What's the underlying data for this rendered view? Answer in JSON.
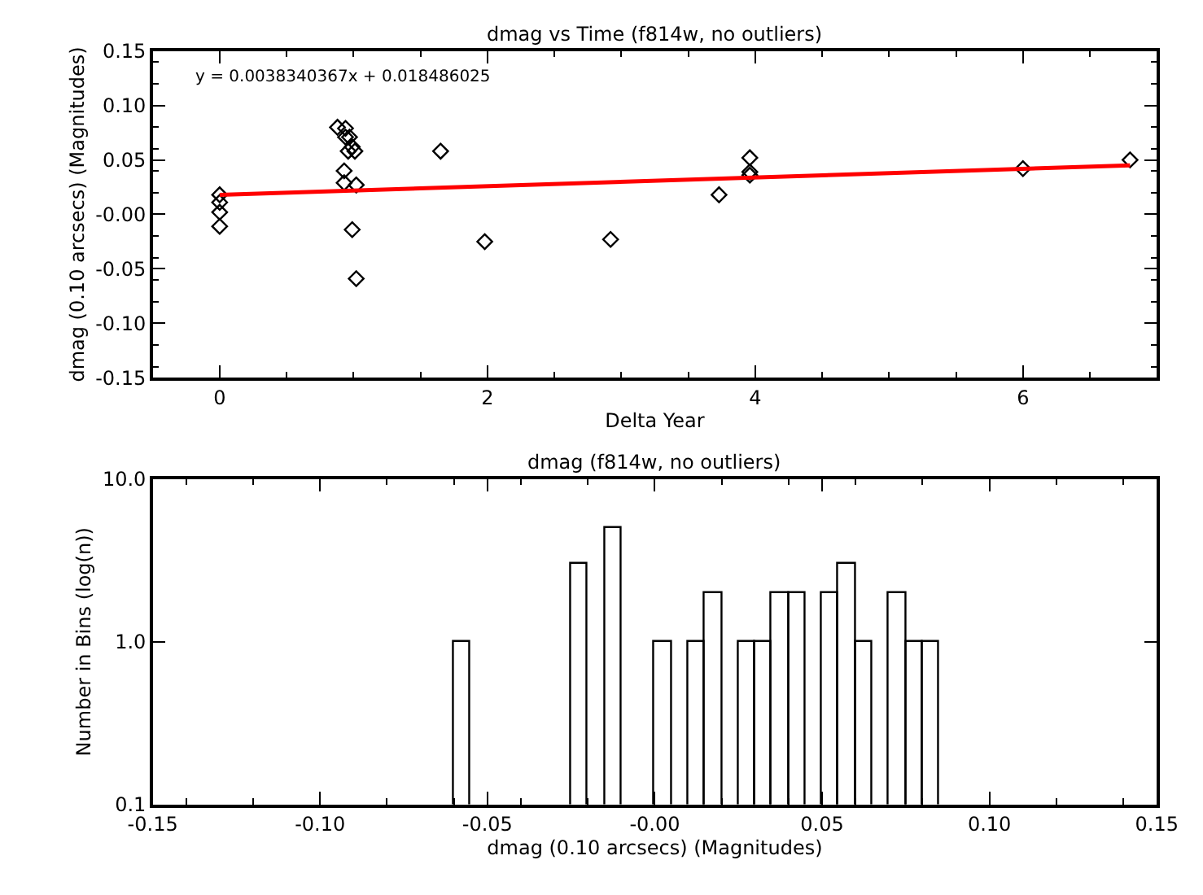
{
  "chart_data": [
    {
      "type": "scatter",
      "title": "dmag vs Time (f814w, no outliers)",
      "xlabel": "Delta Year",
      "ylabel": "dmag (0.10 arcsecs) (Magnitudes)",
      "annotations": [
        "y = 0.0038340367x + 0.018486025"
      ],
      "xlim": [
        -0.5,
        7.0
      ],
      "xticks": [
        0,
        2,
        4,
        6
      ],
      "ylim": [
        -0.15,
        0.15
      ],
      "yticks": [
        {
          "value": -0.15,
          "label": "-0.15"
        },
        {
          "value": -0.1,
          "label": "-0.10"
        },
        {
          "value": -0.05,
          "label": "-0.05"
        },
        {
          "value": 0,
          "label": "-0.00"
        },
        {
          "value": 0.05,
          "label": "0.05"
        },
        {
          "value": 0.1,
          "label": "0.10"
        },
        {
          "value": 0.15,
          "label": "0.15"
        }
      ],
      "marker": "diamond",
      "series": [
        {
          "type": "scatter",
          "color": "#000000",
          "x": [
            0,
            0,
            0,
            0,
            0.88,
            0.94,
            0.94,
            0.97,
            0.99,
            0.96,
            1.01,
            0.93,
            0.93,
            1.02,
            0.99,
            1.02,
            1.65,
            1.98,
            2.92,
            3.73,
            3.96,
            3.96,
            3.96,
            6.0,
            6.8
          ],
          "values": [
            0.018,
            0.011,
            0.002,
            -0.011,
            0.08,
            0.079,
            0.071,
            0.071,
            0.062,
            0.058,
            0.058,
            0.04,
            0.029,
            0.027,
            -0.014,
            -0.059,
            0.058,
            -0.025,
            -0.023,
            0.018,
            0.052,
            0.039,
            0.036,
            0.042,
            0.05
          ]
        },
        {
          "type": "line",
          "color": "#ff0000",
          "marker": "none",
          "x": [
            0,
            6.8
          ],
          "values": [
            0.018,
            0.045
          ]
        }
      ]
    },
    {
      "type": "histogram",
      "title": "dmag (f814w, no outliers)",
      "xlabel": "dmag (0.10 arcsecs) (Magnitudes)",
      "ylabel": "Number in Bins (log(n))",
      "bins": [
        -0.06,
        -0.055,
        -0.05,
        -0.045,
        -0.04,
        -0.035,
        -0.03,
        -0.025,
        -0.02,
        -0.015,
        -0.01,
        -0.005,
        0.0,
        0.005,
        0.01,
        0.015,
        0.02,
        0.025,
        0.03,
        0.035,
        0.04,
        0.045,
        0.05,
        0.055,
        0.06,
        0.065,
        0.07,
        0.075,
        0.08,
        0.085
      ],
      "values": [
        1,
        null,
        null,
        null,
        null,
        null,
        null,
        3,
        null,
        5,
        null,
        null,
        1,
        null,
        1,
        2,
        null,
        1,
        1,
        2,
        2,
        null,
        2,
        3,
        1,
        null,
        2,
        1,
        1
      ],
      "color": "#000000",
      "log": "y",
      "xlim": [
        -0.15,
        0.15
      ],
      "xticks": [
        {
          "value": -0.15,
          "label": "-0.15"
        },
        {
          "value": -0.1,
          "label": "-0.10"
        },
        {
          "value": -0.05,
          "label": "-0.05"
        },
        {
          "value": 0,
          "label": "-0.00"
        },
        {
          "value": 0.05,
          "label": "0.05"
        },
        {
          "value": 0.1,
          "label": "0.10"
        },
        {
          "value": 0.15,
          "label": "0.15"
        }
      ],
      "ylim": [
        0.1,
        10
      ],
      "yticks": [
        {
          "value": 0.1,
          "label": "0.1"
        },
        {
          "value": 1,
          "label": "1.0"
        },
        {
          "value": 10,
          "label": "10.0"
        }
      ]
    }
  ]
}
